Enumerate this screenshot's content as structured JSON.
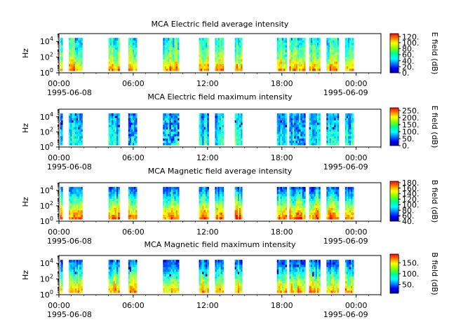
{
  "chart_data": [
    {
      "type": "heatmap",
      "title": "MCA  Electric field average intensity",
      "ylabel": "Hz",
      "colorbar_label": "E field (dB)",
      "colorbar_ticks": [
        "0.",
        "20.",
        "40.",
        "60.",
        "80.",
        "100.",
        "120."
      ],
      "colorbar_range": [
        0,
        130
      ],
      "x_ticks": [
        "00:00",
        "06:00",
        "12:00",
        "18:00",
        "00:00"
      ],
      "x_dates": [
        "1995-06-08",
        "1995-06-09"
      ],
      "y_ticks": [
        "10^0",
        "10^2",
        "10^4"
      ],
      "yscale": "log",
      "ylim": [
        1,
        100000
      ]
    },
    {
      "type": "heatmap",
      "title": "MCA  Electric field maximum intensity",
      "ylabel": "Hz",
      "colorbar_label": "E field (dB)",
      "colorbar_ticks": [
        "0.",
        "50.",
        "100.",
        "150.",
        "200.",
        "250."
      ],
      "colorbar_range": [
        0,
        270
      ],
      "x_ticks": [
        "00:00",
        "06:00",
        "12:00",
        "18:00",
        "00:00"
      ],
      "x_dates": [
        "1995-06-08",
        "1995-06-09"
      ],
      "y_ticks": [
        "10^0",
        "10^2",
        "10^4"
      ],
      "yscale": "log",
      "ylim": [
        1,
        100000
      ]
    },
    {
      "type": "heatmap",
      "title": "MCA  Magnetic field average intensity",
      "ylabel": "Hz",
      "colorbar_label": "B field (dB)",
      "colorbar_ticks": [
        "40.",
        "60.",
        "80.",
        "100.",
        "120.",
        "140.",
        "160.",
        "180."
      ],
      "colorbar_range": [
        40,
        185
      ],
      "x_ticks": [
        "00:00",
        "06:00",
        "12:00",
        "18:00",
        "00:00"
      ],
      "x_dates": [
        "1995-06-08",
        "1995-06-09"
      ],
      "y_ticks": [
        "10^0",
        "10^2",
        "10^4"
      ],
      "yscale": "log",
      "ylim": [
        1,
        100000
      ]
    },
    {
      "type": "heatmap",
      "title": "MCA  Magnetic field maximum intensity",
      "ylabel": "Hz",
      "colorbar_label": "B field (dB)",
      "colorbar_ticks": [
        "50.",
        "100.",
        "150."
      ],
      "colorbar_range": [
        10,
        190
      ],
      "x_ticks": [
        "00:00",
        "06:00",
        "12:00",
        "18:00",
        "00:00"
      ],
      "x_dates": [
        "1995-06-08",
        "1995-06-09"
      ],
      "y_ticks": [
        "10^0",
        "10^2",
        "10^4"
      ],
      "yscale": "log",
      "ylim": [
        1,
        100000
      ]
    }
  ],
  "data_intervals_hours": [
    [
      0.1,
      0.3
    ],
    [
      0.8,
      1.9
    ],
    [
      4.0,
      4.9
    ],
    [
      5.6,
      6.3
    ],
    [
      8.4,
      9.7
    ],
    [
      11.3,
      12.1
    ],
    [
      12.6,
      13.3
    ],
    [
      14.2,
      14.8
    ],
    [
      17.6,
      18.4
    ],
    [
      18.6,
      19.9
    ],
    [
      20.2,
      21.1
    ],
    [
      21.6,
      22.6
    ],
    [
      23.1,
      23.8
    ]
  ]
}
